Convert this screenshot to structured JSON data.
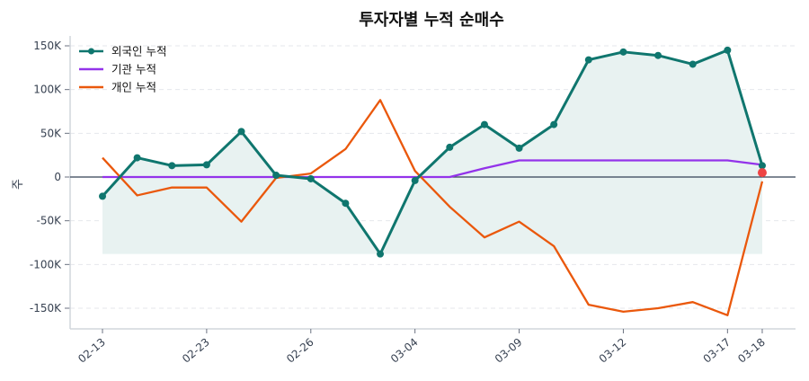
{
  "chart_data": {
    "type": "line",
    "title": "투자자별 누적 순매수",
    "ylabel": "주",
    "xlabel": "",
    "ylim": [
      -175000,
      160000
    ],
    "grid": true,
    "legend_position": "top-left",
    "x_ticks": [
      {
        "index": 0,
        "label": "02-13"
      },
      {
        "index": 3,
        "label": "02-23"
      },
      {
        "index": 6,
        "label": "02-26"
      },
      {
        "index": 9,
        "label": "03-04"
      },
      {
        "index": 12,
        "label": "03-09"
      },
      {
        "index": 15,
        "label": "03-12"
      },
      {
        "index": 18,
        "label": "03-17"
      },
      {
        "index": 19,
        "label": "03-18"
      }
    ],
    "y_ticks": [
      {
        "value": 150000,
        "label": "150K"
      },
      {
        "value": 100000,
        "label": "100K"
      },
      {
        "value": 50000,
        "label": "50K"
      },
      {
        "value": 0,
        "label": "0"
      },
      {
        "value": -50000,
        "label": "-50K"
      },
      {
        "value": -100000,
        "label": "-100K"
      },
      {
        "value": -150000,
        "label": "-150K"
      }
    ],
    "series": [
      {
        "name": "외국인 누적",
        "color": "#0f766e",
        "markers": true,
        "fill": true,
        "values": [
          -22000,
          22000,
          13000,
          14000,
          52000,
          2000,
          -2000,
          -30000,
          -88000,
          -4000,
          34000,
          60000,
          33000,
          60000,
          134000,
          143000,
          139000,
          129000,
          145000,
          13000
        ]
      },
      {
        "name": "기관 누적",
        "color": "#9333ea",
        "markers": false,
        "values": [
          0,
          0,
          0,
          0,
          0,
          0,
          0,
          0,
          0,
          0,
          0,
          10000,
          19000,
          19000,
          19000,
          19000,
          19000,
          19000,
          19000,
          14000
        ]
      },
      {
        "name": "개인 누적",
        "color": "#ea580c",
        "markers": false,
        "values": [
          22000,
          -21000,
          -12000,
          -12000,
          -51000,
          -1000,
          4000,
          32000,
          88000,
          7000,
          -34000,
          -69000,
          -51000,
          -79000,
          -146000,
          -154000,
          -150000,
          -143000,
          -158000,
          -5000
        ]
      }
    ],
    "highlight_point": {
      "index": 19,
      "value": 5000,
      "color": "#ef4444"
    },
    "colors": {
      "fill": "#e8f2f1",
      "zero_line": "#334155",
      "grid": "#e5e7eb",
      "axis": "#d1d5db",
      "tick_text": "#374151"
    }
  }
}
